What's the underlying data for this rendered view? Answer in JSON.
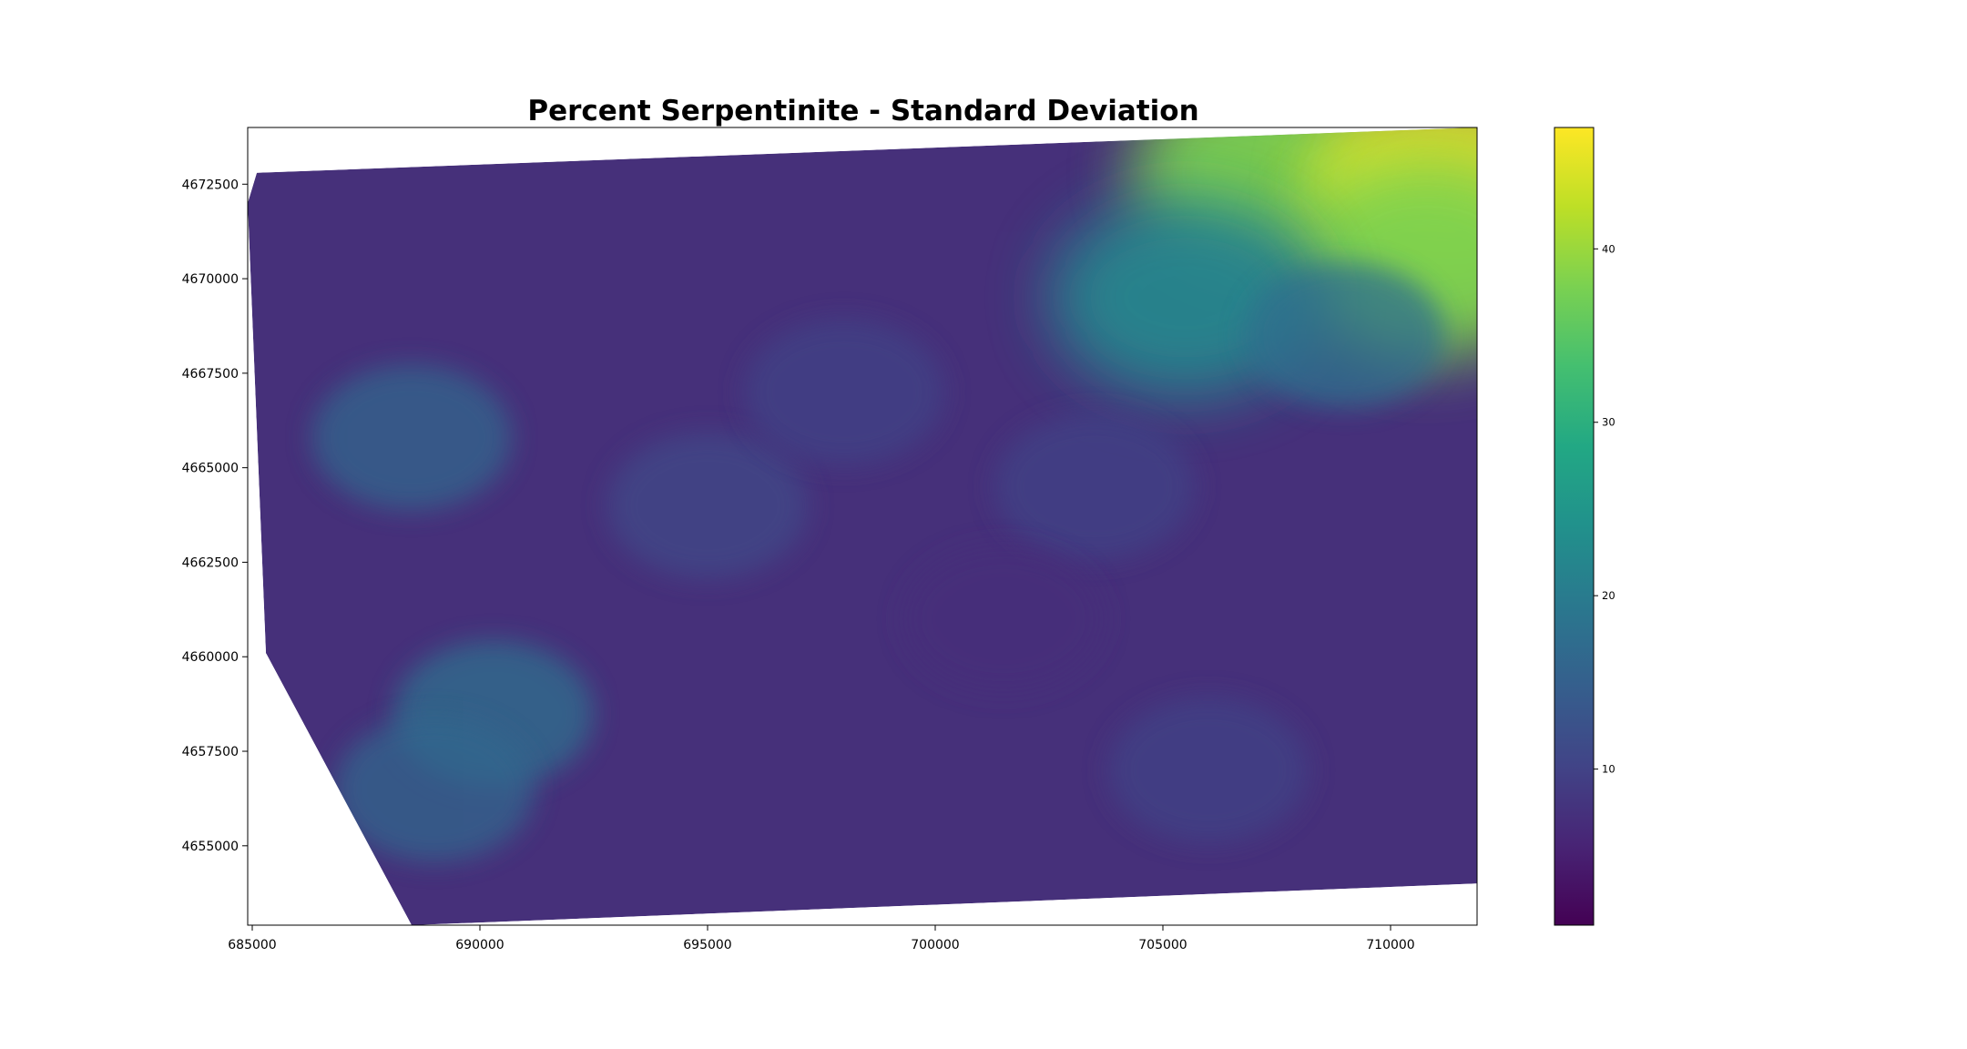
{
  "chart_data": {
    "type": "heatmap",
    "title": "Percent Serpentinite - Standard Deviation",
    "xlabel": "",
    "ylabel": "",
    "xlim": [
      684900,
      711900
    ],
    "ylim": [
      4652900,
      4674000
    ],
    "x_ticks": [
      685000,
      690000,
      695000,
      700000,
      705000,
      710000
    ],
    "x_tick_labels": [
      "685000",
      "690000",
      "695000",
      "700000",
      "705000",
      "710000"
    ],
    "y_ticks": [
      4655000,
      4657500,
      4660000,
      4662500,
      4665000,
      4667500,
      4670000,
      4672500
    ],
    "y_tick_labels": [
      "4655000",
      "4657500",
      "4660000",
      "4662500",
      "4665000",
      "4667500",
      "4670000",
      "4672500"
    ],
    "grid": false,
    "colormap": "viridis",
    "colorbar": {
      "range": [
        1,
        47
      ],
      "ticks": [
        10,
        20,
        30,
        40
      ],
      "tick_labels": [
        "10",
        "20",
        "30",
        "40"
      ]
    },
    "data_footprint": [
      [
        685100,
        4672800
      ],
      [
        711900,
        4674000
      ],
      [
        711900,
        4654000
      ],
      [
        688500,
        4652900
      ],
      [
        685300,
        4660100
      ],
      [
        684900,
        4672000
      ]
    ],
    "hotspots": [
      {
        "x": 707300,
        "y": 4672800,
        "value": 38
      },
      {
        "x": 711300,
        "y": 4672500,
        "value": 45
      },
      {
        "x": 710800,
        "y": 4670500,
        "value": 38
      },
      {
        "x": 705500,
        "y": 4669500,
        "value": 22
      },
      {
        "x": 709000,
        "y": 4668500,
        "value": 18
      },
      {
        "x": 688500,
        "y": 4665800,
        "value": 16
      },
      {
        "x": 690300,
        "y": 4658500,
        "value": 18
      },
      {
        "x": 689000,
        "y": 4656500,
        "value": 16
      },
      {
        "x": 695000,
        "y": 4664000,
        "value": 11
      },
      {
        "x": 698000,
        "y": 4667000,
        "value": 10
      },
      {
        "x": 703500,
        "y": 4664500,
        "value": 10
      },
      {
        "x": 706000,
        "y": 4657000,
        "value": 10
      },
      {
        "x": 701500,
        "y": 4661000,
        "value": 7
      }
    ],
    "colors": {
      "viridis_low": "#440154",
      "viridis_mid": "#21918c",
      "viridis_high": "#fde725",
      "base_field": "#46307a"
    }
  }
}
